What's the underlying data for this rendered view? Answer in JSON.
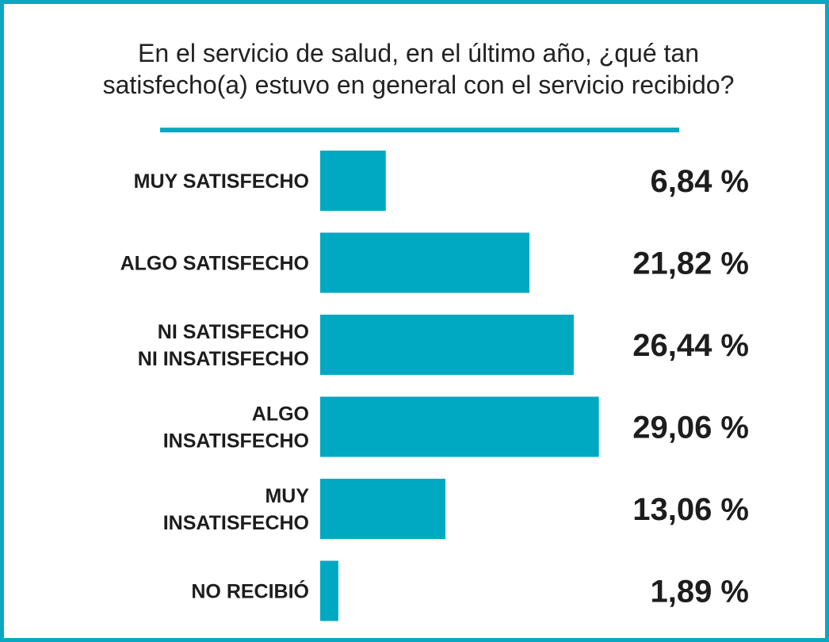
{
  "title_lines": [
    "En el servicio de salud, en el último año, ¿qué tan",
    "satisfecho(a) estuvo en general con el servicio recibido?"
  ],
  "colors": {
    "accent": "#0ba7c1",
    "bar": "#00a9c2",
    "text": "#1d1d1d"
  },
  "chart_data": {
    "type": "bar",
    "orientation": "horizontal",
    "title": "En el servicio de salud, en el último año, ¿qué tan satisfecho(a) estuvo en general con el servicio recibido?",
    "categories": [
      [
        "MUY SATISFECHO"
      ],
      [
        "ALGO SATISFECHO"
      ],
      [
        "NI SATISFECHO",
        "NI INSATISFECHO"
      ],
      [
        "ALGO",
        "INSATISFECHO"
      ],
      [
        "MUY",
        "INSATISFECHO"
      ],
      [
        "NO RECIBIÓ"
      ]
    ],
    "values": [
      6.84,
      21.82,
      26.44,
      29.06,
      13.06,
      1.89
    ],
    "value_labels": [
      "6,84 %",
      "21,82 %",
      "26,44 %",
      "29,06 %",
      "13,06 %",
      "1,89 %"
    ],
    "xlim": [
      0,
      30
    ],
    "xlabel": "",
    "ylabel": "",
    "grid": false,
    "legend": "none"
  }
}
